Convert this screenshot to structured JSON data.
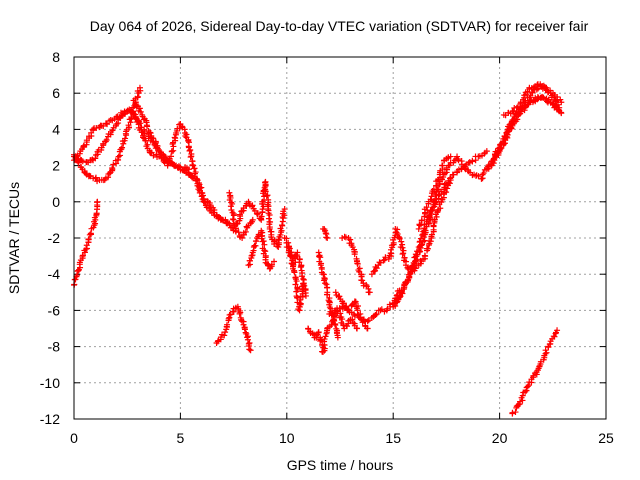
{
  "chart_data": {
    "type": "scatter",
    "title": "Day 064 of 2026, Sidereal Day-to-day VTEC variation (SDTVAR) for receiver fair",
    "xlabel": "GPS time / hours",
    "ylabel": "SDTVAR / TECUs",
    "xlim": [
      0,
      25
    ],
    "ylim": [
      -12,
      8
    ],
    "xticks": [
      0,
      5,
      10,
      15,
      20,
      25
    ],
    "yticks": [
      -12,
      -10,
      -8,
      -6,
      -4,
      -2,
      0,
      2,
      4,
      6,
      8
    ],
    "grid": true,
    "marker": "+",
    "color": "#ff0000",
    "series": [
      {
        "name": "track-1",
        "x": [
          0.0,
          0.3,
          0.6,
          0.9,
          1.3,
          1.8,
          2.3,
          2.7,
          3.0,
          3.3,
          3.7,
          4.2,
          4.7,
          5.0,
          5.4
        ],
        "y": [
          2.3,
          2.8,
          3.3,
          4.0,
          4.2,
          4.5,
          4.9,
          5.0,
          4.5,
          3.9,
          3.3,
          2.6,
          2.0,
          1.9,
          1.8
        ]
      },
      {
        "name": "track-2",
        "x": [
          0.0,
          0.3,
          0.6,
          0.8,
          1.0,
          1.3,
          1.6,
          2.0,
          2.3,
          2.6,
          2.9,
          3.3,
          3.6,
          4.0,
          4.4,
          4.8,
          5.2,
          5.6
        ],
        "y": [
          2.5,
          2.3,
          2.2,
          2.3,
          2.4,
          3.0,
          3.6,
          4.3,
          4.8,
          5.1,
          4.7,
          3.5,
          2.7,
          2.5,
          2.2,
          2.0,
          1.7,
          1.3
        ]
      },
      {
        "name": "track-3",
        "x": [
          0.0,
          0.2,
          0.4,
          0.6,
          0.9,
          1.2,
          1.5,
          1.8,
          2.1,
          2.4,
          2.7,
          2.9,
          3.1
        ],
        "y": [
          2.6,
          2.2,
          1.8,
          1.5,
          1.3,
          1.2,
          1.3,
          1.8,
          2.5,
          3.5,
          4.6,
          5.5,
          6.3
        ]
      },
      {
        "name": "track-4",
        "x": [
          0.0,
          0.2,
          0.4,
          0.6,
          0.8,
          1.0,
          1.1
        ],
        "y": [
          -4.6,
          -3.8,
          -3.0,
          -2.4,
          -1.8,
          -1.0,
          0.0
        ]
      },
      {
        "name": "track-5",
        "x": [
          2.8,
          3.2,
          3.6,
          4.0,
          4.4,
          4.6,
          4.8,
          5.0,
          5.2,
          5.4,
          5.6,
          5.8,
          6.0,
          6.3,
          6.6,
          6.9,
          7.2
        ],
        "y": [
          5.6,
          4.8,
          3.8,
          2.8,
          2.0,
          2.8,
          3.8,
          4.3,
          4.0,
          3.0,
          2.0,
          1.0,
          0.3,
          0.0,
          -0.6,
          -1.0,
          -1.2
        ]
      },
      {
        "name": "track-6",
        "x": [
          5.0,
          5.4,
          5.8,
          6.0,
          6.2,
          6.4,
          6.7,
          7.0,
          7.3,
          7.6,
          7.9,
          8.2,
          8.4
        ],
        "y": [
          1.8,
          1.5,
          1.2,
          0.5,
          -0.2,
          -0.5,
          -0.8,
          -1.0,
          -1.2,
          -1.6,
          -2.0,
          -1.3,
          -1.0
        ]
      },
      {
        "name": "track-7",
        "x": [
          7.3,
          7.6,
          7.9,
          8.2,
          8.5,
          8.8,
          9.0,
          9.2,
          9.4,
          9.6,
          9.9
        ],
        "y": [
          0.5,
          -1.5,
          -0.5,
          0.0,
          -0.5,
          -1.0,
          1.1,
          -1.5,
          -2.2,
          -2.5,
          -0.4
        ]
      },
      {
        "name": "track-8",
        "x": [
          8.2,
          8.4,
          8.6,
          8.8,
          9.0,
          9.2,
          9.4
        ],
        "y": [
          -3.5,
          -2.8,
          -2.0,
          -1.6,
          -3.2,
          -3.7,
          -3.3
        ]
      },
      {
        "name": "track-9",
        "x": [
          6.7,
          6.9,
          7.1,
          7.3,
          7.5,
          7.7,
          7.9,
          8.1,
          8.3
        ],
        "y": [
          -7.8,
          -7.6,
          -7.2,
          -6.4,
          -5.9,
          -5.8,
          -6.6,
          -7.3,
          -8.2
        ]
      },
      {
        "name": "track-10",
        "x": [
          9.9,
          10.1,
          10.3,
          10.5,
          10.7,
          10.9
        ],
        "y": [
          -2.0,
          -2.5,
          -3.5,
          -2.8,
          -3.8,
          -5.2
        ]
      },
      {
        "name": "track-11",
        "x": [
          10.0,
          10.2,
          10.4,
          10.6,
          10.8
        ],
        "y": [
          -2.5,
          -3.0,
          -4.2,
          -6.0,
          -4.5
        ]
      },
      {
        "name": "track-12",
        "x": [
          11.0,
          11.3,
          11.5,
          11.7,
          11.9,
          12.1,
          12.4,
          12.7,
          13.0,
          13.3
        ],
        "y": [
          -7.0,
          -7.5,
          -7.2,
          -8.3,
          -7.0,
          -6.8,
          -6.0,
          -7.0,
          -6.5,
          -7.0
        ]
      },
      {
        "name": "track-13",
        "x": [
          11.5,
          11.6,
          11.8,
          12.0,
          12.2,
          12.4
        ],
        "y": [
          -2.8,
          -3.5,
          -4.5,
          -5.5,
          -6.5,
          -7.5
        ]
      },
      {
        "name": "track-14",
        "x": [
          11.7,
          11.8,
          11.9
        ],
        "y": [
          -1.5,
          -1.6,
          -2.0
        ]
      },
      {
        "name": "track-15",
        "x": [
          12.3,
          12.6,
          12.9,
          13.2,
          13.5,
          13.8,
          14.1,
          14.4,
          14.7,
          15.0,
          15.3
        ],
        "y": [
          -5.0,
          -5.5,
          -6.0,
          -6.3,
          -6.5,
          -6.6,
          -6.3,
          -6.0,
          -6.0,
          -5.6,
          -4.9
        ]
      },
      {
        "name": "track-16",
        "x": [
          12.0,
          12.3,
          12.6,
          12.9,
          13.2,
          13.5,
          13.8
        ],
        "y": [
          -6.2,
          -6.0,
          -5.8,
          -6.0,
          -5.5,
          -6.5,
          -7.0
        ]
      },
      {
        "name": "track-17",
        "x": [
          12.6,
          12.9,
          13.1,
          13.3,
          13.6,
          13.9
        ],
        "y": [
          -2.0,
          -2.0,
          -2.5,
          -3.3,
          -4.5,
          -5.0
        ]
      },
      {
        "name": "track-18",
        "x": [
          14.0,
          14.3,
          14.6,
          14.9,
          15.1,
          15.3,
          15.6,
          15.9,
          16.2,
          16.5,
          16.8,
          17.1,
          17.4,
          17.7
        ],
        "y": [
          -4.0,
          -3.5,
          -3.2,
          -3.0,
          -1.5,
          -2.0,
          -3.5,
          -3.8,
          -3.5,
          -3.0,
          -2.0,
          -0.5,
          0.5,
          1.2
        ]
      },
      {
        "name": "track-19",
        "x": [
          15.0,
          15.4,
          15.8,
          16.2,
          16.6,
          17.0,
          17.4,
          17.8,
          18.2,
          18.6,
          19.0,
          19.4
        ],
        "y": [
          -5.8,
          -5.0,
          -4.0,
          -2.5,
          -1.0,
          0.0,
          0.8,
          1.5,
          1.8,
          2.2,
          2.5,
          2.8
        ]
      },
      {
        "name": "track-20",
        "x": [
          15.2,
          15.6,
          16.0,
          16.4,
          16.8,
          17.2,
          17.6,
          18.0,
          18.4,
          18.8,
          19.2
        ],
        "y": [
          -5.5,
          -4.5,
          -3.5,
          -2.2,
          -0.5,
          1.0,
          2.0,
          2.5,
          1.8,
          1.5,
          1.3
        ]
      },
      {
        "name": "track-21",
        "x": [
          16.2,
          16.5,
          16.8,
          17.1,
          17.4,
          17.7
        ],
        "y": [
          -1.5,
          -0.6,
          0.3,
          1.2,
          2.3,
          2.5
        ]
      },
      {
        "name": "track-22",
        "x": [
          19.4,
          19.8,
          20.2,
          20.6,
          21.0,
          21.4,
          21.8,
          22.2,
          22.6,
          22.9
        ],
        "y": [
          1.8,
          2.5,
          3.2,
          4.2,
          5.0,
          5.5,
          5.8,
          5.7,
          5.3,
          4.9
        ]
      },
      {
        "name": "track-23",
        "x": [
          19.6,
          20.0,
          20.4,
          20.8,
          21.2,
          21.6,
          22.0,
          22.4,
          22.8
        ],
        "y": [
          2.0,
          2.8,
          4.0,
          5.0,
          5.5,
          6.2,
          6.4,
          6.0,
          5.2
        ]
      },
      {
        "name": "track-24",
        "x": [
          20.2,
          20.6,
          21.0,
          21.4,
          21.8,
          22.2,
          22.6,
          22.9
        ],
        "y": [
          4.8,
          5.0,
          5.5,
          6.3,
          6.5,
          6.3,
          5.8,
          5.5
        ]
      },
      {
        "name": "track-25",
        "x": [
          19.2,
          19.6,
          20.0,
          20.4,
          20.8,
          21.2,
          21.6,
          22.0,
          22.4,
          22.8
        ],
        "y": [
          1.5,
          2.2,
          3.0,
          4.0,
          4.8,
          5.2,
          5.6,
          5.8,
          5.5,
          5.0
        ]
      },
      {
        "name": "track-26",
        "x": [
          20.6,
          20.9,
          21.2,
          21.5,
          21.8,
          22.1,
          22.4,
          22.7
        ],
        "y": [
          -11.7,
          -11.2,
          -10.5,
          -9.8,
          -9.3,
          -8.5,
          -7.7,
          -7.1
        ]
      }
    ]
  }
}
